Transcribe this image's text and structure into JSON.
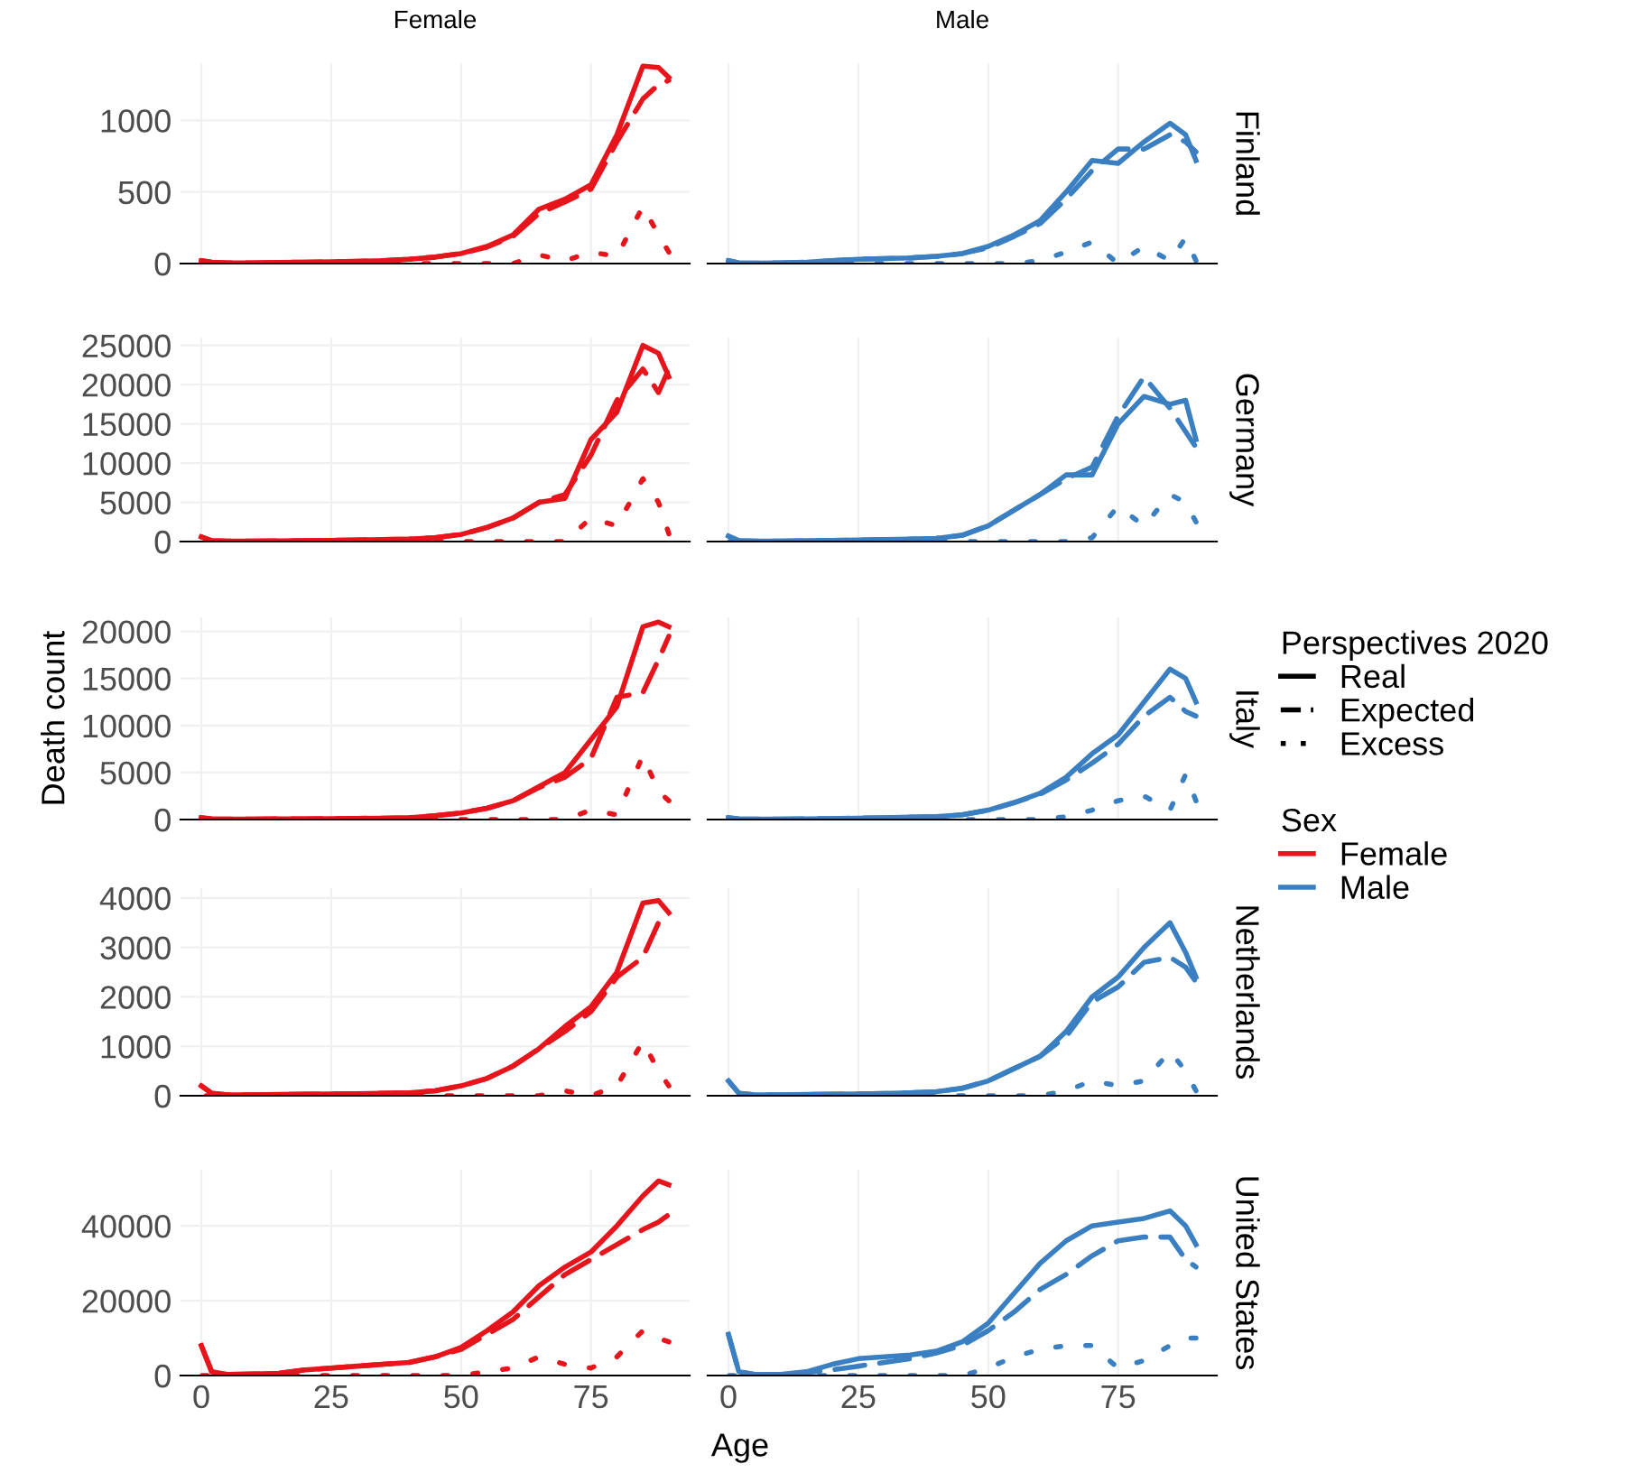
{
  "chart_data": [
    {
      "type": "line",
      "title": "Female",
      "x": [
        0,
        2,
        5,
        10,
        15,
        20,
        25,
        30,
        35,
        40,
        45,
        50,
        55,
        60,
        65,
        70,
        75,
        80,
        85,
        88,
        90
      ],
      "xlim": [
        -4,
        94
      ],
      "xticks": [
        0,
        25,
        50,
        75
      ],
      "ylim": [
        0,
        1400
      ],
      "yticks": [
        0,
        500,
        1000
      ],
      "tick_labels": "y",
      "grid": true,
      "series": [
        {
          "color": "#e8141c",
          "line_style": "solid",
          "values": [
            20,
            10,
            5,
            5,
            8,
            10,
            12,
            15,
            20,
            30,
            45,
            70,
            120,
            200,
            380,
            450,
            550,
            900,
            1380,
            1370,
            1300
          ]
        },
        {
          "color": "#e8141c",
          "line_style": "dashed",
          "values": [
            20,
            10,
            5,
            5,
            8,
            10,
            12,
            15,
            20,
            30,
            45,
            70,
            115,
            190,
            350,
            430,
            520,
            850,
            1150,
            1250,
            1280
          ]
        },
        {
          "color": "#e8141c",
          "line_style": "dotted",
          "values": [
            0,
            0,
            0,
            0,
            0,
            0,
            0,
            0,
            0,
            0,
            0,
            0,
            0,
            0,
            60,
            20,
            80,
            50,
            400,
            200,
            80
          ]
        }
      ]
    },
    {
      "type": "line",
      "title": "Male",
      "y2label": "Finland",
      "x": [
        0,
        2,
        5,
        10,
        15,
        20,
        25,
        30,
        35,
        40,
        45,
        50,
        55,
        60,
        65,
        70,
        75,
        80,
        85,
        88,
        90
      ],
      "xlim": [
        -4,
        94
      ],
      "xticks": [
        0,
        25,
        50,
        75
      ],
      "ylim": [
        0,
        1400
      ],
      "tick_labels": false,
      "grid": true,
      "series": [
        {
          "color": "#3a7fc1",
          "line_style": "solid",
          "values": [
            20,
            5,
            3,
            5,
            10,
            20,
            30,
            35,
            40,
            50,
            70,
            120,
            200,
            300,
            500,
            720,
            700,
            850,
            980,
            900,
            720
          ]
        },
        {
          "color": "#3a7fc1",
          "line_style": "dashed",
          "values": [
            20,
            5,
            3,
            5,
            10,
            20,
            30,
            35,
            40,
            50,
            70,
            110,
            190,
            280,
            450,
            650,
            800,
            800,
            900,
            850,
            780
          ]
        },
        {
          "color": "#3a7fc1",
          "line_style": "dotted",
          "values": [
            0,
            0,
            0,
            0,
            0,
            0,
            0,
            0,
            0,
            0,
            0,
            0,
            0,
            20,
            80,
            150,
            0,
            120,
            20,
            180,
            20
          ]
        }
      ]
    },
    {
      "type": "line",
      "x": [
        0,
        2,
        5,
        10,
        15,
        20,
        25,
        30,
        35,
        40,
        45,
        50,
        55,
        60,
        65,
        70,
        75,
        80,
        85,
        88,
        90
      ],
      "xlim": [
        -4,
        94
      ],
      "xticks": [
        0,
        25,
        50,
        75
      ],
      "ylim": [
        0,
        26000
      ],
      "yticks": [
        0,
        5000,
        10000,
        15000,
        20000,
        25000
      ],
      "tick_labels": "y",
      "grid": true,
      "series": [
        {
          "color": "#e8141c",
          "line_style": "solid",
          "values": [
            600,
            100,
            50,
            60,
            80,
            100,
            150,
            200,
            250,
            300,
            500,
            900,
            1800,
            3000,
            5000,
            5500,
            13000,
            16500,
            25000,
            24000,
            21000
          ]
        },
        {
          "color": "#e8141c",
          "line_style": "dashed",
          "values": [
            600,
            100,
            50,
            60,
            80,
            100,
            150,
            200,
            250,
            300,
            500,
            900,
            1800,
            3000,
            5000,
            6000,
            11000,
            18000,
            22000,
            19000,
            22000
          ]
        },
        {
          "color": "#e8141c",
          "line_style": "dotted",
          "values": [
            0,
            0,
            0,
            0,
            0,
            0,
            0,
            0,
            0,
            0,
            0,
            0,
            0,
            0,
            0,
            0,
            3000,
            2000,
            8000,
            5000,
            1000
          ]
        }
      ]
    },
    {
      "type": "line",
      "y2label": "Germany",
      "x": [
        0,
        2,
        5,
        10,
        15,
        20,
        25,
        30,
        35,
        40,
        45,
        50,
        55,
        60,
        65,
        70,
        75,
        80,
        85,
        88,
        90
      ],
      "xlim": [
        -4,
        94
      ],
      "xticks": [
        0,
        25,
        50,
        75
      ],
      "ylim": [
        0,
        26000
      ],
      "tick_labels": false,
      "grid": true,
      "series": [
        {
          "color": "#3a7fc1",
          "line_style": "solid",
          "values": [
            700,
            100,
            50,
            60,
            100,
            150,
            200,
            250,
            300,
            400,
            800,
            2000,
            4000,
            6000,
            8500,
            8500,
            15000,
            18500,
            17500,
            18000,
            13000
          ]
        },
        {
          "color": "#3a7fc1",
          "line_style": "dashed",
          "values": [
            700,
            100,
            50,
            60,
            100,
            150,
            200,
            250,
            300,
            400,
            800,
            2000,
            4000,
            6000,
            8000,
            9500,
            16000,
            21000,
            17000,
            14000,
            12000
          ]
        },
        {
          "color": "#3a7fc1",
          "line_style": "dotted",
          "values": [
            0,
            0,
            0,
            0,
            0,
            0,
            0,
            0,
            0,
            0,
            0,
            0,
            0,
            0,
            0,
            500,
            4500,
            2000,
            6000,
            5000,
            2500
          ]
        }
      ]
    },
    {
      "type": "line",
      "ylabel": "Death count",
      "x": [
        0,
        2,
        5,
        10,
        15,
        20,
        25,
        30,
        35,
        40,
        45,
        50,
        55,
        60,
        65,
        70,
        75,
        80,
        85,
        88,
        90
      ],
      "xlim": [
        -4,
        94
      ],
      "xticks": [
        0,
        25,
        50,
        75
      ],
      "ylim": [
        0,
        21500
      ],
      "yticks": [
        0,
        5000,
        10000,
        15000,
        20000
      ],
      "tick_labels": "y",
      "grid": true,
      "series": [
        {
          "color": "#e8141c",
          "line_style": "solid",
          "values": [
            200,
            80,
            50,
            50,
            60,
            80,
            100,
            120,
            150,
            200,
            400,
            700,
            1200,
            2000,
            3500,
            5000,
            8500,
            12000,
            20500,
            21000,
            20500
          ]
        },
        {
          "color": "#e8141c",
          "line_style": "dashed",
          "values": [
            200,
            80,
            50,
            50,
            60,
            80,
            100,
            120,
            150,
            200,
            400,
            700,
            1200,
            2000,
            3400,
            4500,
            6500,
            13000,
            13500,
            17000,
            19500
          ]
        },
        {
          "color": "#e8141c",
          "line_style": "dotted",
          "values": [
            0,
            0,
            0,
            0,
            0,
            0,
            0,
            0,
            0,
            0,
            0,
            0,
            0,
            0,
            0,
            0,
            1000,
            500,
            6800,
            3000,
            2000
          ]
        }
      ]
    },
    {
      "type": "line",
      "y2label": "Italy",
      "legend": "right",
      "legend_title": "Perspectives 2020",
      "x": [
        0,
        2,
        5,
        10,
        15,
        20,
        25,
        30,
        35,
        40,
        45,
        50,
        55,
        60,
        65,
        70,
        75,
        80,
        85,
        88,
        90
      ],
      "xlim": [
        -4,
        94
      ],
      "xticks": [
        0,
        25,
        50,
        75
      ],
      "ylim": [
        0,
        21500
      ],
      "tick_labels": false,
      "grid": true,
      "series": [
        {
          "name": "Real",
          "color": "#3a7fc1",
          "line_style": "solid",
          "values": [
            200,
            80,
            50,
            50,
            80,
            100,
            150,
            200,
            250,
            300,
            500,
            1000,
            1800,
            2800,
            4500,
            7000,
            9000,
            12500,
            16000,
            15000,
            12500
          ]
        },
        {
          "name": "Expected",
          "color": "#3a7fc1",
          "line_style": "dashed",
          "values": [
            200,
            80,
            50,
            50,
            80,
            100,
            150,
            200,
            250,
            300,
            500,
            1000,
            1800,
            2700,
            4200,
            6000,
            8000,
            11000,
            13000,
            11500,
            11000
          ]
        },
        {
          "name": "Excess",
          "color": "#3a7fc1",
          "line_style": "dotted",
          "values": [
            0,
            0,
            0,
            0,
            0,
            0,
            0,
            0,
            0,
            0,
            0,
            0,
            0,
            0,
            300,
            1000,
            2000,
            2500,
            1000,
            4800,
            2000
          ]
        }
      ]
    },
    {
      "type": "line",
      "x": [
        0,
        2,
        5,
        10,
        15,
        20,
        25,
        30,
        35,
        40,
        45,
        50,
        55,
        60,
        65,
        70,
        75,
        80,
        85,
        88,
        90
      ],
      "xlim": [
        -4,
        94
      ],
      "xticks": [
        0,
        25,
        50,
        75
      ],
      "ylim": [
        0,
        4200
      ],
      "yticks": [
        0,
        1000,
        2000,
        3000,
        4000
      ],
      "tick_labels": "y",
      "grid": true,
      "series": [
        {
          "color": "#e8141c",
          "line_style": "solid",
          "values": [
            200,
            50,
            20,
            20,
            25,
            30,
            35,
            40,
            50,
            60,
            100,
            200,
            350,
            600,
            950,
            1400,
            1800,
            2500,
            3900,
            3950,
            3700
          ]
        },
        {
          "color": "#e8141c",
          "line_style": "dashed",
          "values": [
            200,
            50,
            20,
            20,
            25,
            30,
            35,
            40,
            50,
            60,
            100,
            200,
            350,
            600,
            950,
            1300,
            1700,
            2400,
            2800,
            3500,
            3600
          ]
        },
        {
          "color": "#e8141c",
          "line_style": "dotted",
          "values": [
            0,
            0,
            0,
            0,
            0,
            0,
            0,
            0,
            0,
            0,
            0,
            0,
            0,
            0,
            0,
            100,
            0,
            200,
            1100,
            500,
            200
          ]
        }
      ]
    },
    {
      "type": "line",
      "y2label": "Netherlands",
      "legend_title": "Sex",
      "x": [
        0,
        2,
        5,
        10,
        15,
        20,
        25,
        30,
        35,
        40,
        45,
        50,
        55,
        60,
        65,
        70,
        75,
        80,
        85,
        88,
        90
      ],
      "xlim": [
        -4,
        94
      ],
      "xticks": [
        0,
        25,
        50,
        75
      ],
      "ylim": [
        0,
        4200
      ],
      "tick_labels": false,
      "grid": true,
      "series": [
        {
          "color": "#3a7fc1",
          "line_style": "solid",
          "values": [
            300,
            50,
            20,
            20,
            25,
            30,
            35,
            45,
            60,
            80,
            150,
            300,
            550,
            800,
            1300,
            2000,
            2400,
            3000,
            3500,
            2900,
            2400
          ]
        },
        {
          "color": "#3a7fc1",
          "line_style": "dashed",
          "values": [
            300,
            50,
            20,
            20,
            25,
            30,
            35,
            45,
            60,
            80,
            150,
            300,
            550,
            800,
            1200,
            1900,
            2200,
            2700,
            2800,
            2600,
            2300
          ]
        },
        {
          "color": "#3a7fc1",
          "line_style": "dotted",
          "values": [
            0,
            0,
            0,
            0,
            0,
            0,
            0,
            0,
            0,
            0,
            0,
            0,
            0,
            0,
            100,
            300,
            200,
            300,
            900,
            500,
            100
          ]
        }
      ]
    },
    {
      "type": "line",
      "xlabel": "Age",
      "x": [
        0,
        2,
        5,
        10,
        15,
        20,
        25,
        30,
        35,
        40,
        45,
        50,
        55,
        60,
        65,
        70,
        75,
        80,
        85,
        88,
        90
      ],
      "xlim": [
        -4,
        94
      ],
      "xticks": [
        0,
        25,
        50,
        75
      ],
      "ylim": [
        0,
        55000
      ],
      "yticks": [
        0,
        20000,
        40000
      ],
      "grid": true,
      "series": [
        {
          "color": "#e8141c",
          "line_style": "solid",
          "values": [
            8000,
            1000,
            300,
            400,
            600,
            1500,
            2000,
            2500,
            3000,
            3500,
            5000,
            7500,
            12000,
            17000,
            24000,
            29000,
            33000,
            40000,
            48000,
            52000,
            51000
          ]
        },
        {
          "color": "#e8141c",
          "line_style": "dashed",
          "values": [
            8000,
            1000,
            300,
            400,
            600,
            1500,
            2000,
            2500,
            3000,
            3500,
            5000,
            7000,
            11000,
            15000,
            21000,
            27000,
            31000,
            35000,
            39000,
            41000,
            43000
          ]
        },
        {
          "color": "#e8141c",
          "line_style": "dotted",
          "values": [
            0,
            0,
            0,
            0,
            0,
            0,
            0,
            0,
            0,
            0,
            0,
            0,
            1000,
            2000,
            5000,
            3000,
            2000,
            5000,
            12000,
            10000,
            9000
          ]
        }
      ]
    },
    {
      "type": "line",
      "y2label": "United States",
      "x": [
        0,
        2,
        5,
        10,
        15,
        20,
        25,
        30,
        35,
        40,
        45,
        50,
        55,
        60,
        65,
        70,
        75,
        80,
        85,
        88,
        90
      ],
      "xlim": [
        -4,
        94
      ],
      "xticks": [
        0,
        25,
        50,
        75
      ],
      "ylim": [
        0,
        55000
      ],
      "tick_labels": "x",
      "grid": true,
      "series": [
        {
          "color": "#3a7fc1",
          "line_style": "solid",
          "values": [
            11000,
            1000,
            300,
            300,
            1000,
            3000,
            4500,
            5000,
            5500,
            6500,
            9000,
            14000,
            22000,
            30000,
            36000,
            40000,
            41000,
            42000,
            44000,
            40000,
            35000
          ]
        },
        {
          "color": "#3a7fc1",
          "line_style": "dashed",
          "values": [
            11000,
            1000,
            300,
            300,
            800,
            1500,
            2500,
            3500,
            4500,
            6000,
            8000,
            12000,
            17000,
            23000,
            27000,
            32000,
            36000,
            37000,
            37000,
            31000,
            29000
          ]
        },
        {
          "color": "#3a7fc1",
          "line_style": "dotted",
          "values": [
            0,
            0,
            0,
            0,
            0,
            0,
            0,
            0,
            0,
            0,
            0,
            2000,
            5000,
            7000,
            8000,
            8000,
            2000,
            4000,
            8000,
            10000,
            10000
          ]
        }
      ]
    }
  ]
}
